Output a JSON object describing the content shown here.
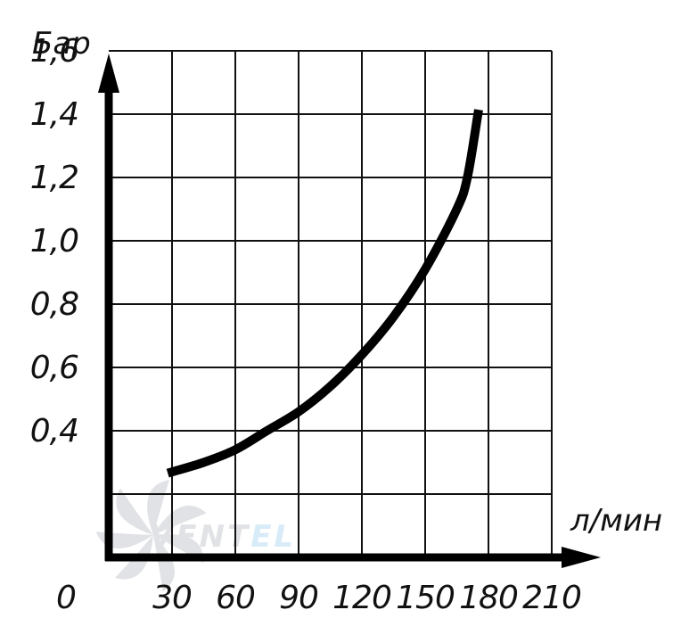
{
  "chart_data": {
    "type": "line",
    "title": "",
    "xlabel": "л/мин",
    "ylabel": "Бар",
    "xlim": [
      0,
      210
    ],
    "ylim": [
      0,
      1.6
    ],
    "x_ticks": [
      0,
      30,
      60,
      90,
      120,
      150,
      180,
      210
    ],
    "x_tick_labels": [
      "0",
      "30",
      "60",
      "90",
      "120",
      "150",
      "180",
      "210"
    ],
    "y_ticks": [
      0.4,
      0.6,
      0.8,
      1.0,
      1.2,
      1.4,
      1.6
    ],
    "y_tick_labels": [
      "0,4",
      "0,6",
      "0,8",
      "1,0",
      "1,2",
      "1,4",
      "1,6"
    ],
    "grid": true,
    "series": [
      {
        "x": [
          30,
          45,
          60,
          75,
          90,
          105,
          120,
          135,
          150,
          165,
          170,
          175
        ],
        "y": [
          0.27,
          0.3,
          0.34,
          0.4,
          0.46,
          0.54,
          0.64,
          0.76,
          0.91,
          1.1,
          1.2,
          1.4
        ]
      }
    ],
    "colors": {
      "line": "#000000",
      "grid": "#111111",
      "axis": "#000000"
    }
  },
  "watermark": {
    "text": "VENTEL",
    "colors": [
      "#c9ccd2",
      "#b9dcf3"
    ]
  }
}
